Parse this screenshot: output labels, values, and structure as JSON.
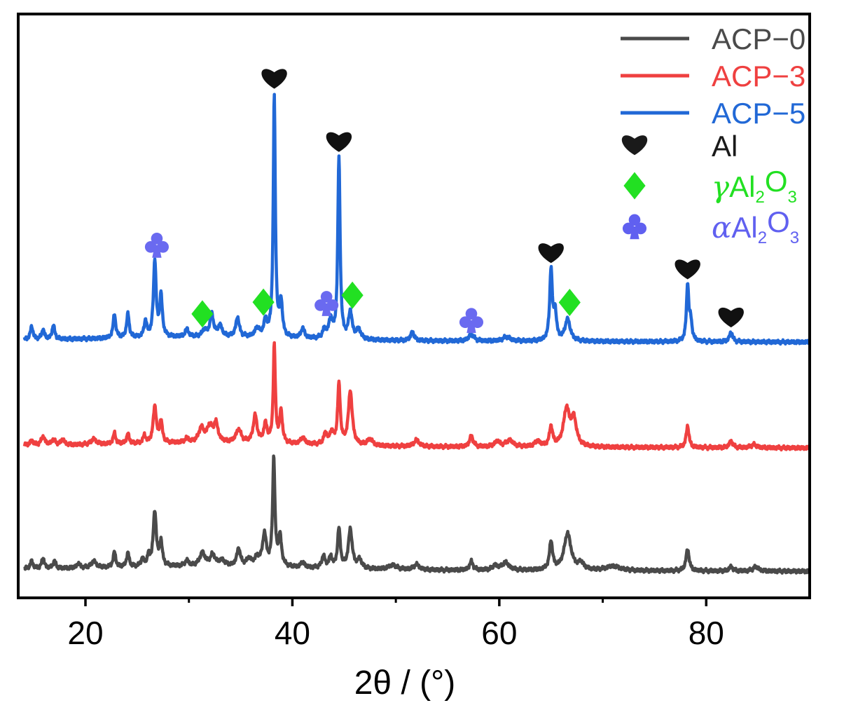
{
  "chart_data": {
    "type": "line",
    "xlabel": "2θ / (°)",
    "ylabel": "",
    "xlim": [
      13.5,
      90
    ],
    "xticks": [
      20,
      40,
      60,
      80
    ],
    "xticks_minor": [
      30,
      50,
      70,
      90
    ],
    "yticks_visible": false,
    "grid": false,
    "legend_position": "top-right",
    "series": [
      {
        "name": "ACP−0",
        "color": "#4a4a4a",
        "baseline": 0.0,
        "peaks": [
          [
            14.8,
            0.07,
            0.15
          ],
          [
            15.9,
            0.1,
            0.15
          ],
          [
            17.0,
            0.07,
            0.15
          ],
          [
            19.3,
            0.04,
            0.2
          ],
          [
            20.8,
            0.06,
            0.3
          ],
          [
            22.8,
            0.14,
            0.15
          ],
          [
            24.1,
            0.13,
            0.15
          ],
          [
            25.5,
            0.07,
            0.15
          ],
          [
            26.1,
            0.09,
            0.15
          ],
          [
            26.7,
            0.5,
            0.18
          ],
          [
            27.3,
            0.22,
            0.15
          ],
          [
            29.8,
            0.05,
            0.2
          ],
          [
            31.3,
            0.12,
            0.3
          ],
          [
            32.3,
            0.1,
            0.3
          ],
          [
            33.2,
            0.05,
            0.3
          ],
          [
            34.8,
            0.16,
            0.2
          ],
          [
            35.8,
            0.06,
            0.3
          ],
          [
            36.6,
            0.07,
            0.3
          ],
          [
            37.3,
            0.29,
            0.22
          ],
          [
            38.2,
            1.0,
            0.13
          ],
          [
            38.8,
            0.27,
            0.18
          ],
          [
            41.0,
            0.05,
            0.2
          ],
          [
            43.0,
            0.11,
            0.18
          ],
          [
            43.7,
            0.1,
            0.18
          ],
          [
            44.5,
            0.36,
            0.16
          ],
          [
            45.6,
            0.36,
            0.22
          ],
          [
            46.5,
            0.08,
            0.25
          ],
          [
            49.7,
            0.04,
            0.5
          ],
          [
            52.0,
            0.05,
            0.3
          ],
          [
            57.3,
            0.08,
            0.2
          ],
          [
            59.6,
            0.04,
            0.3
          ],
          [
            60.6,
            0.07,
            0.4
          ],
          [
            65.0,
            0.26,
            0.18
          ],
          [
            66.6,
            0.34,
            0.4
          ],
          [
            67.9,
            0.06,
            0.3
          ],
          [
            71.0,
            0.04,
            0.8
          ],
          [
            78.2,
            0.2,
            0.18
          ],
          [
            82.4,
            0.04,
            0.2
          ],
          [
            84.8,
            0.04,
            0.3
          ]
        ]
      },
      {
        "name": "ACP−3",
        "color": "#ef4040",
        "baseline": 1.0,
        "peaks": [
          [
            14.8,
            0.04,
            0.2
          ],
          [
            15.9,
            0.08,
            0.2
          ],
          [
            16.9,
            0.05,
            0.2
          ],
          [
            17.8,
            0.05,
            0.2
          ],
          [
            20.8,
            0.05,
            0.3
          ],
          [
            22.8,
            0.1,
            0.15
          ],
          [
            24.1,
            0.09,
            0.15
          ],
          [
            25.7,
            0.07,
            0.15
          ],
          [
            26.7,
            0.34,
            0.18
          ],
          [
            27.3,
            0.2,
            0.15
          ],
          [
            29.8,
            0.04,
            0.2
          ],
          [
            31.2,
            0.13,
            0.3
          ],
          [
            32.0,
            0.14,
            0.3
          ],
          [
            32.6,
            0.17,
            0.25
          ],
          [
            34.8,
            0.12,
            0.3
          ],
          [
            36.4,
            0.25,
            0.22
          ],
          [
            37.4,
            0.17,
            0.2
          ],
          [
            38.25,
            0.9,
            0.12
          ],
          [
            38.9,
            0.29,
            0.16
          ],
          [
            41.0,
            0.06,
            0.25
          ],
          [
            43.2,
            0.1,
            0.2
          ],
          [
            43.8,
            0.11,
            0.2
          ],
          [
            44.5,
            0.55,
            0.15
          ],
          [
            45.6,
            0.5,
            0.22
          ],
          [
            47.5,
            0.06,
            0.3
          ],
          [
            52.0,
            0.06,
            0.3
          ],
          [
            57.3,
            0.1,
            0.2
          ],
          [
            59.8,
            0.05,
            0.3
          ],
          [
            61.0,
            0.06,
            0.4
          ],
          [
            63.7,
            0.05,
            0.3
          ],
          [
            65.0,
            0.18,
            0.18
          ],
          [
            66.5,
            0.34,
            0.35
          ],
          [
            67.2,
            0.24,
            0.3
          ],
          [
            78.2,
            0.2,
            0.16
          ],
          [
            82.4,
            0.06,
            0.2
          ],
          [
            84.6,
            0.03,
            0.3
          ]
        ]
      },
      {
        "name": "ACP−5",
        "color": "#2168d6",
        "baseline": 2.0,
        "peaks": [
          [
            14.8,
            0.12,
            0.15
          ],
          [
            15.9,
            0.09,
            0.15
          ],
          [
            16.9,
            0.13,
            0.15
          ],
          [
            22.8,
            0.22,
            0.15
          ],
          [
            24.1,
            0.22,
            0.15
          ],
          [
            25.8,
            0.15,
            0.15
          ],
          [
            26.7,
            0.71,
            0.15
          ],
          [
            27.3,
            0.38,
            0.15
          ],
          [
            29.8,
            0.07,
            0.2
          ],
          [
            31.5,
            0.06,
            0.25
          ],
          [
            32.2,
            0.21,
            0.2
          ],
          [
            33.0,
            0.1,
            0.25
          ],
          [
            34.7,
            0.18,
            0.2
          ],
          [
            36.6,
            0.08,
            0.25
          ],
          [
            37.4,
            0.14,
            0.2
          ],
          [
            38.25,
            2.23,
            0.12
          ],
          [
            38.9,
            0.32,
            0.16
          ],
          [
            41.0,
            0.09,
            0.2
          ],
          [
            43.1,
            0.08,
            0.2
          ],
          [
            43.7,
            0.17,
            0.2
          ],
          [
            44.5,
            1.68,
            0.13
          ],
          [
            45.6,
            0.25,
            0.2
          ],
          [
            46.4,
            0.09,
            0.25
          ],
          [
            51.6,
            0.08,
            0.2
          ],
          [
            57.3,
            0.06,
            0.3
          ],
          [
            60.7,
            0.04,
            0.4
          ],
          [
            65.0,
            0.66,
            0.15
          ],
          [
            65.4,
            0.25,
            0.15
          ],
          [
            66.6,
            0.2,
            0.3
          ],
          [
            78.2,
            0.52,
            0.13
          ],
          [
            78.5,
            0.18,
            0.15
          ],
          [
            82.4,
            0.09,
            0.18
          ]
        ]
      }
    ],
    "markers": [
      {
        "series": "ACP−5",
        "symbol": "heart",
        "x": 38.25
      },
      {
        "series": "ACP−5",
        "symbol": "heart",
        "x": 44.5
      },
      {
        "series": "ACP−5",
        "symbol": "heart",
        "x": 65.0
      },
      {
        "series": "ACP−5",
        "symbol": "heart",
        "x": 78.2
      },
      {
        "series": "ACP−5",
        "symbol": "heart",
        "x": 82.4
      },
      {
        "series": "ACP−5",
        "symbol": "diamond",
        "x": 31.3
      },
      {
        "series": "ACP−5",
        "symbol": "diamond",
        "x": 37.2
      },
      {
        "series": "ACP−5",
        "symbol": "diamond",
        "x": 45.8
      },
      {
        "series": "ACP−5",
        "symbol": "diamond",
        "x": 66.8
      },
      {
        "series": "ACP−5",
        "symbol": "club",
        "x": 26.9
      },
      {
        "series": "ACP−5",
        "symbol": "club",
        "x": 43.3
      },
      {
        "series": "ACP−5",
        "symbol": "club",
        "x": 57.3
      }
    ],
    "legend": {
      "lines": [
        {
          "label": "ACP−0",
          "color": "#4a4a4a"
        },
        {
          "label": "ACP−3",
          "color": "#ef4040"
        },
        {
          "label": "ACP−5",
          "color": "#2168d6"
        }
      ],
      "symbols": [
        {
          "symbol": "heart",
          "color": "#1a1a1a",
          "greek": "",
          "label": "Al",
          "sub1": "",
          "mid": "",
          "sub2": ""
        },
        {
          "symbol": "diamond",
          "color": "#22e022",
          "greek": "γ",
          "label": "Al",
          "sub1": "2",
          "mid": "O",
          "sub2": "3"
        },
        {
          "symbol": "club",
          "color": "#6060f0",
          "greek": "α",
          "label": "Al",
          "sub1": "2",
          "mid": "O",
          "sub2": "3"
        }
      ]
    },
    "symbol_colors": {
      "heart": "#111111",
      "diamond": "#22e022",
      "club": "#6a6af0"
    }
  }
}
